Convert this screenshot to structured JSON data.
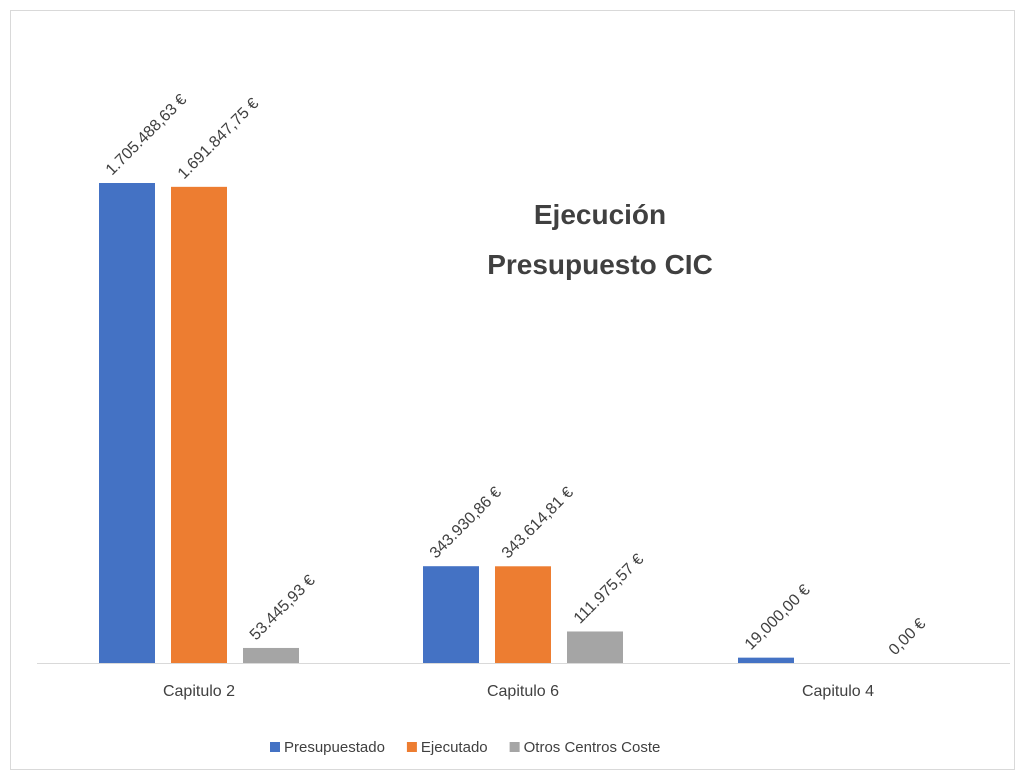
{
  "chart_data": {
    "type": "bar",
    "title": "Ejecución Presupuesto CIC",
    "categories": [
      "Capitulo 2",
      "Capitulo 6",
      "Capitulo 4"
    ],
    "series": [
      {
        "name": "Presupuestado",
        "color": "#4472c4",
        "values": [
          1705488.63,
          343930.86,
          19000
        ],
        "value_labels": [
          "1.705.488,63 €",
          "343.930,86 €",
          "19,000,00 €"
        ]
      },
      {
        "name": "Ejecutado",
        "color": "#ed7d31",
        "values": [
          1691847.75,
          343614.81,
          null
        ],
        "value_labels": [
          "1.691.847,75 €",
          "343.614,81 €",
          null
        ]
      },
      {
        "name": "Otros Centros Coste",
        "color": "#a5a5a5",
        "values": [
          53445.93,
          111975.57,
          0
        ],
        "value_labels": [
          "53.445,93 €",
          "111.975,57 €",
          "0,00 €"
        ]
      }
    ],
    "legend": "bottom"
  }
}
